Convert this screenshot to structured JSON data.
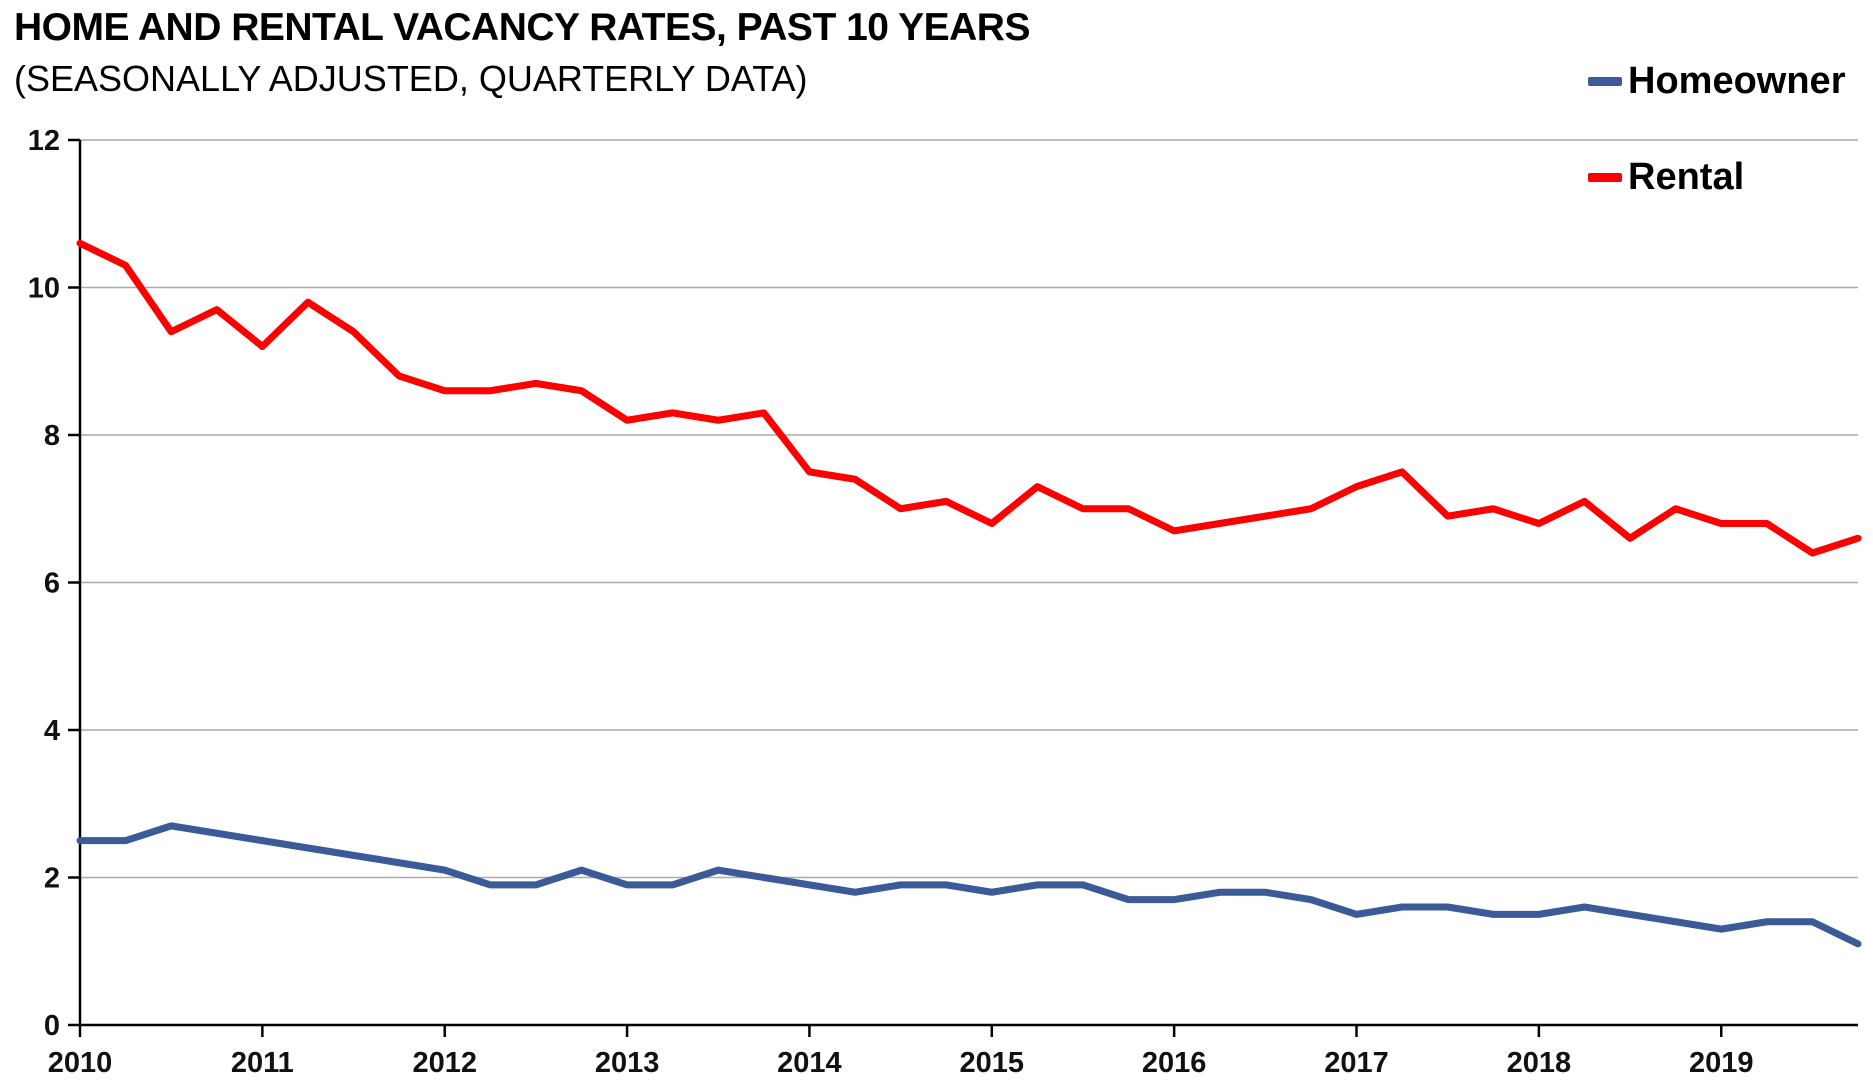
{
  "page": {
    "background": "#ffffff"
  },
  "chart_data": {
    "type": "line",
    "title": "HOME AND RENTAL VACANCY RATES, PAST 10 YEARS",
    "subtitle": "(SEASONALLY ADJUSTED, QUARTERLY DATA)",
    "x_unit": "quarter",
    "x_tick_labels": [
      "2010",
      "2011",
      "2012",
      "2013",
      "2014",
      "2015",
      "2016",
      "2017",
      "2018",
      "2019"
    ],
    "y_ticks": [
      0,
      2,
      4,
      6,
      8,
      10,
      12
    ],
    "ylim": [
      0,
      12
    ],
    "grid": true,
    "grid_color": "#AAAAAA",
    "axis_color": "#000000",
    "legend_position": "top-right",
    "series": [
      {
        "name": "Homeowner",
        "color": "#3A5A98",
        "values": [
          2.5,
          2.5,
          2.7,
          2.6,
          2.5,
          2.4,
          2.3,
          2.2,
          2.1,
          1.9,
          1.9,
          2.1,
          1.9,
          1.9,
          2.1,
          2.0,
          1.9,
          1.8,
          1.9,
          1.9,
          1.8,
          1.9,
          1.9,
          1.7,
          1.7,
          1.8,
          1.8,
          1.7,
          1.5,
          1.6,
          1.6,
          1.5,
          1.5,
          1.6,
          1.5,
          1.4,
          1.3,
          1.4,
          1.4,
          1.1
        ]
      },
      {
        "name": "Rental",
        "color": "#FF0000",
        "values": [
          10.6,
          10.3,
          9.4,
          9.7,
          9.2,
          9.8,
          9.4,
          8.8,
          8.6,
          8.6,
          8.7,
          8.6,
          8.2,
          8.3,
          8.2,
          8.3,
          7.5,
          7.4,
          7.0,
          7.1,
          6.8,
          7.3,
          7.0,
          7.0,
          6.7,
          6.8,
          6.9,
          7.0,
          7.3,
          7.5,
          6.9,
          7.0,
          6.8,
          7.1,
          6.6,
          7.0,
          6.8,
          6.8,
          6.4,
          6.6
        ]
      }
    ]
  }
}
